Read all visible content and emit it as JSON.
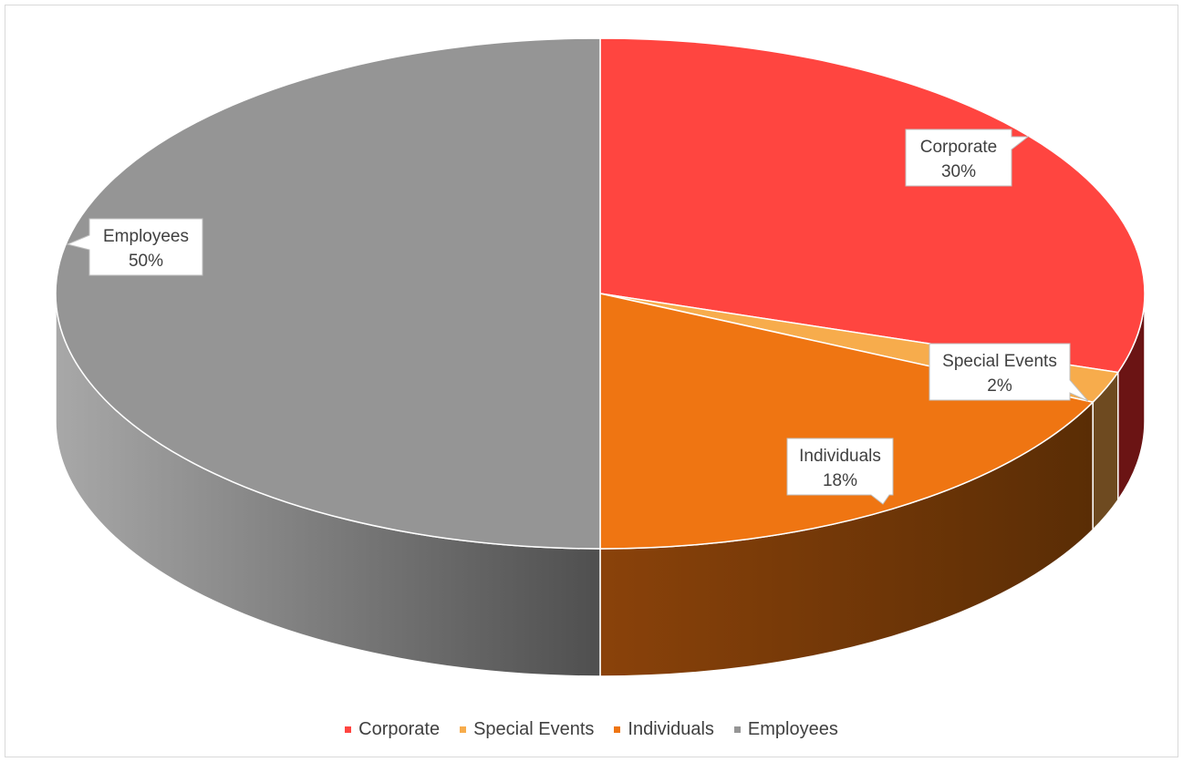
{
  "chart_data": {
    "type": "pie",
    "title": "",
    "style": "3d",
    "slices": [
      {
        "label": "Corporate",
        "value": 30,
        "percent_label": "30%",
        "color": "#ff4540",
        "side_color": "#6b1414"
      },
      {
        "label": "Special Events",
        "value": 2,
        "percent_label": "2%",
        "color": "#f7ac4c",
        "side_color": "#6e4a20"
      },
      {
        "label": "Individuals",
        "value": 18,
        "percent_label": "18%",
        "color": "#ef7512",
        "side_color": "#6e3406"
      },
      {
        "label": "Employees",
        "value": 50,
        "percent_label": "50%",
        "color": "#959595",
        "side_color": "#6b6b6b"
      }
    ],
    "legend": {
      "position": "bottom"
    }
  }
}
